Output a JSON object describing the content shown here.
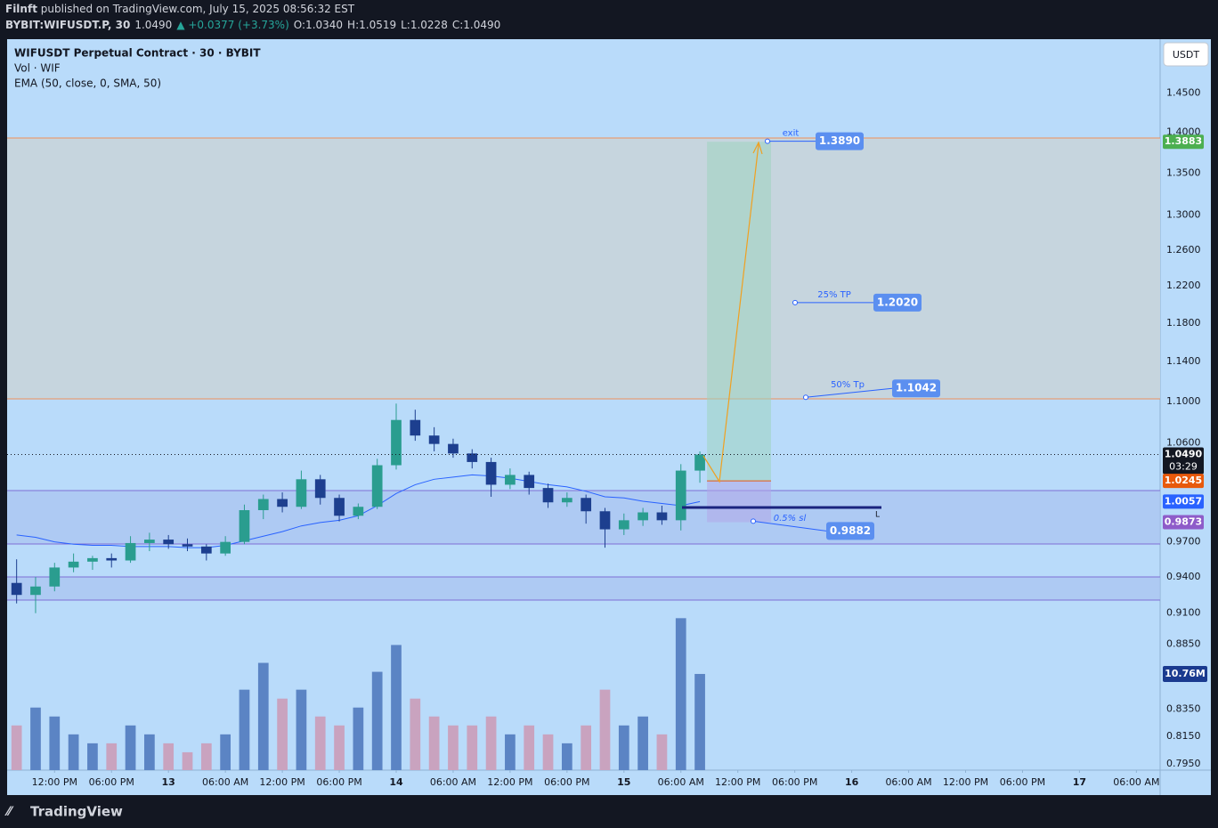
{
  "header": {
    "author": "Filnft",
    "published": " published on TradingView.com, July 15, 2025 08:56:32 EST",
    "quote": [
      "BYBIT:WIFUSDT.P, 30",
      "1.0490",
      "▲ +0.0377 (+3.73%)",
      "O:1.0340",
      "H:1.0519",
      "L:1.0228",
      "C:1.0490"
    ]
  },
  "footer": {
    "brand": "TradingView"
  },
  "chart_data": {
    "type": "candlestick",
    "title": "WIFUSDT Perpetual Contract · 30 · BYBIT",
    "volume_name": "Vol · WIF",
    "ema_name": "EMA (50, close, 0, SMA, 50)",
    "currency": "USDT",
    "log_scale": true,
    "up_color": "#2a9d8f",
    "down_color": "#1d3f8f",
    "volume_up_color": "#5b84c4",
    "volume_down_color": "#c9a3bf",
    "ema_color": "#2962ff",
    "x": [
      -16,
      -14,
      -12,
      -10,
      -8,
      -6,
      -4,
      -2,
      0,
      2,
      4,
      6,
      8,
      10,
      12,
      14,
      16,
      18,
      20,
      22,
      24,
      26,
      28,
      30,
      32,
      34,
      36,
      38,
      40,
      42,
      44,
      46,
      48,
      50,
      52,
      54,
      56
    ],
    "open": [
      0.935,
      0.925,
      0.932,
      0.948,
      0.953,
      0.956,
      0.954,
      0.969,
      0.972,
      0.968,
      0.966,
      0.96,
      0.97,
      0.998,
      1.008,
      1.001,
      1.026,
      1.009,
      0.993,
      1.001,
      1.039,
      1.082,
      1.067,
      1.059,
      1.05,
      1.042,
      1.021,
      1.03,
      1.018,
      1.005,
      1.009,
      0.997,
      0.981,
      0.989,
      0.996,
      0.989,
      1.034
    ],
    "high": [
      0.955,
      0.94,
      0.952,
      0.96,
      0.958,
      0.96,
      0.975,
      0.978,
      0.976,
      0.973,
      0.968,
      0.975,
      1.003,
      1.012,
      1.014,
      1.034,
      1.03,
      1.012,
      1.004,
      1.045,
      1.098,
      1.092,
      1.075,
      1.064,
      1.054,
      1.046,
      1.036,
      1.033,
      1.022,
      1.014,
      1.012,
      1.0,
      0.995,
      1.0,
      1.002,
      1.04,
      1.0519
    ],
    "low": [
      0.918,
      0.91,
      0.928,
      0.944,
      0.946,
      0.948,
      0.952,
      0.962,
      0.964,
      0.962,
      0.954,
      0.958,
      0.968,
      0.99,
      0.996,
      0.999,
      1.003,
      0.988,
      0.99,
      0.999,
      1.035,
      1.062,
      1.052,
      1.046,
      1.036,
      1.01,
      1.017,
      1.012,
      1.0,
      1.001,
      0.986,
      0.965,
      0.976,
      0.984,
      0.985,
      0.98,
      1.0228
    ],
    "close": [
      0.925,
      0.932,
      0.948,
      0.953,
      0.956,
      0.954,
      0.969,
      0.972,
      0.968,
      0.966,
      0.96,
      0.97,
      0.998,
      1.008,
      1.001,
      1.026,
      1.009,
      0.993,
      1.001,
      1.039,
      1.082,
      1.067,
      1.059,
      1.05,
      1.042,
      1.021,
      1.03,
      1.018,
      1.005,
      1.009,
      0.997,
      0.981,
      0.989,
      0.996,
      0.989,
      1.034,
      1.049
    ],
    "volume": [
      5,
      7,
      6,
      4,
      3,
      3,
      5,
      4,
      3,
      2,
      3,
      4,
      9,
      12,
      8,
      9,
      6,
      5,
      7,
      11,
      14,
      8,
      6,
      5,
      5,
      6,
      4,
      5,
      4,
      3,
      5,
      9,
      5,
      6,
      4,
      17,
      10.76
    ],
    "ema": [
      0.976,
      0.974,
      0.97,
      0.968,
      0.967,
      0.967,
      0.966,
      0.966,
      0.966,
      0.965,
      0.965,
      0.967,
      0.971,
      0.975,
      0.979,
      0.984,
      0.987,
      0.989,
      0.993,
      1.002,
      1.013,
      1.021,
      1.026,
      1.028,
      1.03,
      1.029,
      1.027,
      1.024,
      1.021,
      1.019,
      1.015,
      1.01,
      1.009,
      1.006,
      1.004,
      1.002,
      1.0057
    ],
    "volume_label": {
      "value": 10.76,
      "label": "10.76M"
    },
    "xlim": [
      -17,
      104.5
    ],
    "xticks": [
      {
        "value": -12,
        "label": "12:00 PM"
      },
      {
        "value": -6,
        "label": "06:00 PM"
      },
      {
        "value": 0,
        "label": "13"
      },
      {
        "value": 6,
        "label": "06:00 AM"
      },
      {
        "value": 12,
        "label": "12:00 PM"
      },
      {
        "value": 18,
        "label": "06:00 PM"
      },
      {
        "value": 24,
        "label": "14"
      },
      {
        "value": 30,
        "label": "06:00 AM"
      },
      {
        "value": 36,
        "label": "12:00 PM"
      },
      {
        "value": 42,
        "label": "06:00 PM"
      },
      {
        "value": 48,
        "label": "15"
      },
      {
        "value": 54,
        "label": "06:00 AM"
      },
      {
        "value": 60,
        "label": "12:00 PM"
      },
      {
        "value": 66,
        "label": "06:00 PM"
      },
      {
        "value": 72,
        "label": "16"
      },
      {
        "value": 78,
        "label": "06:00 AM"
      },
      {
        "value": 84,
        "label": "12:00 PM"
      },
      {
        "value": 90,
        "label": "06:00 PM"
      },
      {
        "value": 96,
        "label": "17"
      },
      {
        "value": 102,
        "label": "06:00 AM"
      }
    ],
    "ylim": [
      0.7906,
      1.522
    ],
    "yticks": [
      {
        "value": 1.45,
        "label": "1.4500"
      },
      {
        "value": 1.4,
        "label": "1.4000"
      },
      {
        "value": 1.35,
        "label": "1.3500"
      },
      {
        "value": 1.3,
        "label": "1.3000"
      },
      {
        "value": 1.26,
        "label": "1.2600"
      },
      {
        "value": 1.22,
        "label": "1.2200"
      },
      {
        "value": 1.18,
        "label": "1.1800"
      },
      {
        "value": 1.14,
        "label": "1.1400"
      },
      {
        "value": 1.1,
        "label": "1.1000"
      },
      {
        "value": 1.06,
        "label": "1.0600"
      },
      {
        "value": 0.97,
        "label": "0.9700"
      },
      {
        "value": 0.94,
        "label": "0.9400"
      },
      {
        "value": 0.91,
        "label": "0.9100"
      },
      {
        "value": 0.885,
        "label": "0.8850"
      },
      {
        "value": 0.835,
        "label": "0.8350"
      },
      {
        "value": 0.815,
        "label": "0.8150"
      },
      {
        "value": 0.795,
        "label": "0.7950"
      }
    ],
    "price_labels": [
      {
        "value": 1.3883,
        "color": "#4caf50"
      },
      {
        "value": 1.049,
        "label": "1.0490",
        "sub": "03:29",
        "color": "#131722"
      },
      {
        "value": 1.0245,
        "color": "#e8590c"
      },
      {
        "value": 1.0057,
        "color": "#2962ff"
      },
      {
        "value": 0.9873,
        "color": "#8e5cc9"
      }
    ],
    "position": {
      "entry": 1.0245,
      "target": 1.3883,
      "stop": 0.9873,
      "side": "L"
    },
    "annotations": [
      {
        "text": "exit",
        "value": 1.389,
        "label": "1.3890"
      },
      {
        "text": "25% TP",
        "value": 1.202,
        "label": "1.2020"
      },
      {
        "text": "50% Tp",
        "value": 1.1042,
        "label": "1.1042"
      },
      {
        "text": "0.5% sl",
        "value": 0.9882,
        "label": "0.9882"
      }
    ]
  }
}
